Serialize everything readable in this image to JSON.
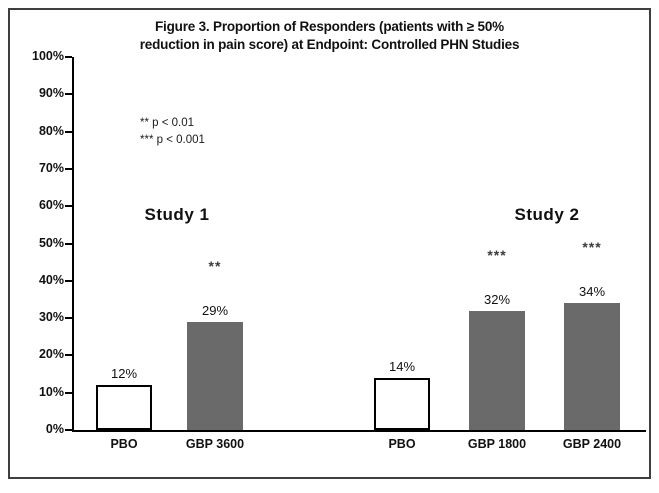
{
  "figure": {
    "title_line1": "Figure 3. Proportion of Responders (patients with ≥ 50%",
    "title_line2": "reduction in pain score) at Endpoint: Controlled PHN Studies"
  },
  "legend": {
    "line1": "** p < 0.01",
    "line2": "*** p < 0.001"
  },
  "groups": {
    "study1": "Study 1",
    "study2": "Study 2"
  },
  "chart_data": {
    "type": "bar",
    "title": "Figure 3. Proportion of Responders (patients with ≥ 50% reduction in pain score) at Endpoint: Controlled PHN Studies",
    "categories": [
      "PBO",
      "GBP 3600",
      "PBO",
      "GBP 1800",
      "GBP 2400"
    ],
    "values": [
      12,
      29,
      14,
      32,
      34
    ],
    "value_labels": [
      "12%",
      "29%",
      "14%",
      "32%",
      "34%"
    ],
    "significance": [
      "",
      "**",
      "",
      "***",
      "***"
    ],
    "bar_styles": [
      "pbo",
      "gbp",
      "pbo",
      "gbp",
      "gbp"
    ],
    "bar_colors": [
      "#ffffff",
      "#6a6a6a",
      "#ffffff",
      "#6a6a6a",
      "#6a6a6a"
    ],
    "ylabel": "",
    "xlabel": "",
    "ylim": [
      0,
      100
    ],
    "yticks": [
      100,
      90,
      80,
      70,
      60,
      50,
      40,
      30,
      20,
      10,
      0
    ],
    "ytick_labels": [
      "100%",
      "90%",
      "80%",
      "70%",
      "60%",
      "50%",
      "40%",
      "30%",
      "20%",
      "10%",
      "0%"
    ],
    "grid": false,
    "legend_position": "none",
    "annotations": [
      "** p < 0.01",
      "*** p < 0.001"
    ],
    "group_labels": [
      {
        "label": "Study 1",
        "bars": [
          0,
          1
        ]
      },
      {
        "label": "Study 2",
        "bars": [
          2,
          3,
          4
        ]
      }
    ]
  }
}
